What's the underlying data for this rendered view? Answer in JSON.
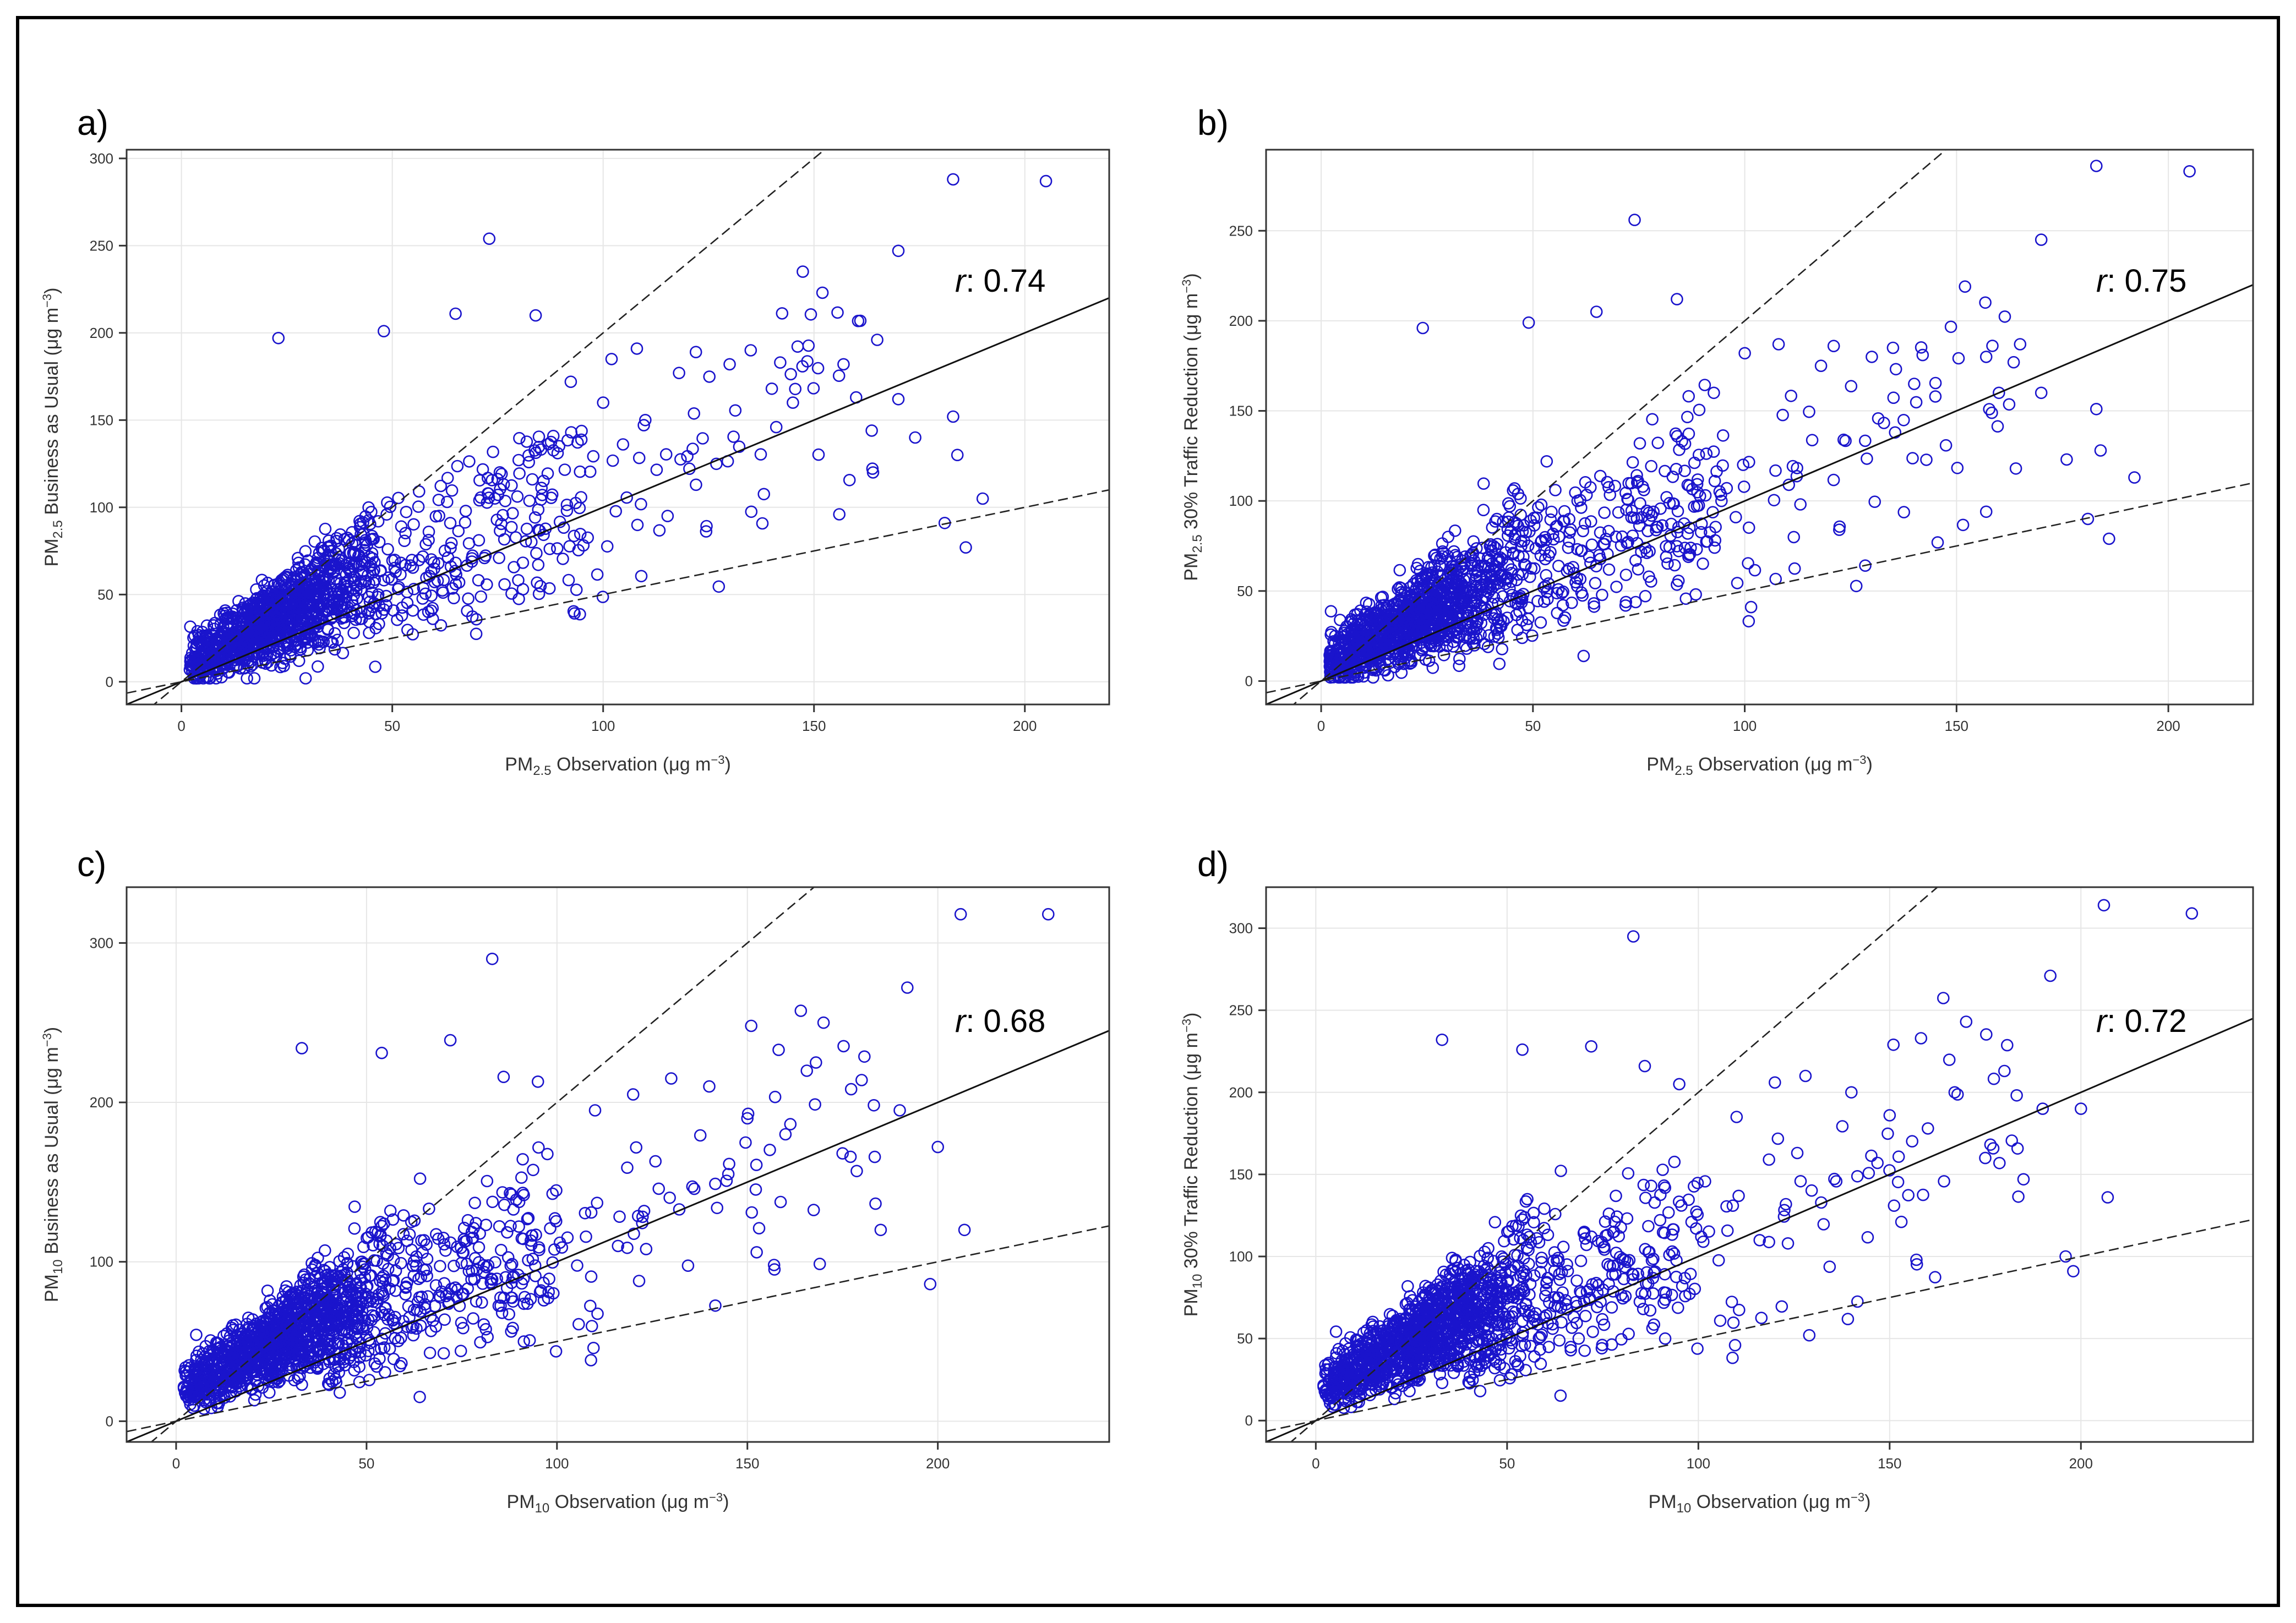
{
  "colors": {
    "points": "#1a14cc",
    "fit": "#111111",
    "frame": "#000000",
    "grid": "#e6e6e6"
  },
  "chart_data": [
    {
      "type": "scatter",
      "panel": "a)",
      "r_prefix": "r",
      "r_value": ": 0.74",
      "xlabel": {
        "main": "PM",
        "sub": "2.5",
        "rest": " Observation (μg m",
        "sup": "−3",
        "close": ")"
      },
      "ylabel": {
        "main": "PM",
        "sub": "2.5",
        "rest": " Business as Usual (μg m",
        "sup": "−3",
        "close": ")"
      },
      "xlim": [
        -13,
        220
      ],
      "ylim": [
        -13,
        305
      ],
      "xticks": [
        0,
        50,
        100,
        150,
        200
      ],
      "yticks": [
        0,
        50,
        100,
        150,
        200,
        250,
        300
      ],
      "fit": {
        "slope": 1.0,
        "intercept": 0
      },
      "factor_of_two": {
        "upper_slope": 2.0,
        "lower_slope": 0.5
      },
      "n_bulk_points": 1400,
      "outliers": [
        [
          183,
          288
        ],
        [
          205,
          287
        ],
        [
          73,
          254
        ],
        [
          170,
          247
        ],
        [
          23,
          197
        ],
        [
          48,
          201
        ],
        [
          65,
          211
        ],
        [
          84,
          210
        ],
        [
          152,
          223
        ],
        [
          165,
          196
        ],
        [
          108,
          191
        ],
        [
          122,
          189
        ],
        [
          130,
          182
        ],
        [
          142,
          183
        ],
        [
          157,
          182
        ],
        [
          118,
          177
        ],
        [
          102,
          185
        ],
        [
          140,
          168
        ],
        [
          145,
          160
        ],
        [
          160,
          163
        ],
        [
          183,
          152
        ],
        [
          184,
          130
        ],
        [
          170,
          162
        ],
        [
          174,
          140
        ],
        [
          190,
          105
        ],
        [
          186,
          77
        ],
        [
          156,
          96
        ],
        [
          164,
          120
        ],
        [
          181,
          91
        ],
        [
          135,
          190
        ],
        [
          100,
          160
        ],
        [
          110,
          150
        ]
      ]
    },
    {
      "type": "scatter",
      "panel": "b)",
      "r_prefix": "r",
      "r_value": ": 0.75",
      "xlabel": {
        "main": "PM",
        "sub": "2.5",
        "rest": " Observation (μg m",
        "sup": "−3",
        "close": ")"
      },
      "ylabel": {
        "main": "PM",
        "sub": "2.5",
        "rest": " 30% Traffic Reduction (μg m",
        "sup": "−3",
        "close": ")"
      },
      "xlim": [
        -13,
        220
      ],
      "ylim": [
        -13,
        295
      ],
      "xticks": [
        0,
        50,
        100,
        150,
        200
      ],
      "yticks": [
        0,
        50,
        100,
        150,
        200,
        250
      ],
      "fit": {
        "slope": 1.0,
        "intercept": 0
      },
      "factor_of_two": {
        "upper_slope": 2.0,
        "lower_slope": 0.5
      },
      "n_bulk_points": 1400,
      "outliers": [
        [
          183,
          286
        ],
        [
          205,
          283
        ],
        [
          74,
          256
        ],
        [
          170,
          245
        ],
        [
          24,
          196
        ],
        [
          49,
          199
        ],
        [
          65,
          205
        ],
        [
          84,
          212
        ],
        [
          152,
          219
        ],
        [
          165,
          187
        ],
        [
          108,
          187
        ],
        [
          121,
          186
        ],
        [
          130,
          180
        ],
        [
          142,
          181
        ],
        [
          157,
          180
        ],
        [
          118,
          175
        ],
        [
          100,
          182
        ],
        [
          140,
          165
        ],
        [
          145,
          158
        ],
        [
          160,
          160
        ],
        [
          183,
          151
        ],
        [
          184,
          128
        ],
        [
          170,
          160
        ],
        [
          176,
          123
        ],
        [
          192,
          113
        ],
        [
          186,
          79
        ],
        [
          157,
          94
        ],
        [
          164,
          118
        ],
        [
          181,
          90
        ],
        [
          135,
          185
        ]
      ]
    },
    {
      "type": "scatter",
      "panel": "c)",
      "r_prefix": "r",
      "r_value": ": 0.68",
      "xlabel": {
        "main": "PM",
        "sub": "10",
        "rest": " Observation (μg m",
        "sup": "−3",
        "close": ")"
      },
      "ylabel": {
        "main": "PM",
        "sub": "10",
        "rest": " Business as Usual (μg m",
        "sup": "−3",
        "close": ")"
      },
      "xlim": [
        -13,
        245
      ],
      "ylim": [
        -13,
        335
      ],
      "xticks": [
        0,
        50,
        100,
        150,
        200
      ],
      "yticks": [
        0,
        100,
        200,
        300
      ],
      "fit": {
        "slope": 1.0,
        "intercept": 0
      },
      "factor_of_two": {
        "upper_slope": 2.0,
        "lower_slope": 0.5
      },
      "n_bulk_points": 1500,
      "outliers": [
        [
          206,
          318
        ],
        [
          229,
          318
        ],
        [
          83,
          290
        ],
        [
          192,
          272
        ],
        [
          33,
          234
        ],
        [
          54,
          231
        ],
        [
          72,
          239
        ],
        [
          170,
          250
        ],
        [
          151,
          248
        ],
        [
          86,
          216
        ],
        [
          95,
          213
        ],
        [
          130,
          215
        ],
        [
          140,
          210
        ],
        [
          120,
          205
        ],
        [
          180,
          214
        ],
        [
          200,
          172
        ],
        [
          207,
          120
        ],
        [
          198,
          86
        ],
        [
          190,
          195
        ],
        [
          160,
          180
        ],
        [
          175,
          168
        ],
        [
          110,
          195
        ],
        [
          150,
          190
        ],
        [
          168,
          225
        ],
        [
          145,
          155
        ],
        [
          185,
          120
        ],
        [
          157,
          98
        ]
      ]
    },
    {
      "type": "scatter",
      "panel": "d)",
      "r_prefix": "r",
      "r_value": ": 0.72",
      "xlabel": {
        "main": "PM",
        "sub": "10",
        "rest": " Observation (μg m",
        "sup": "−3",
        "close": ")"
      },
      "ylabel": {
        "main": "PM",
        "sub": "10",
        "rest": " 30% Traffic Reduction (μg m",
        "sup": "−3",
        "close": ")"
      },
      "xlim": [
        -13,
        245
      ],
      "ylim": [
        -13,
        325
      ],
      "xticks": [
        0,
        50,
        100,
        150,
        200
      ],
      "yticks": [
        0,
        50,
        100,
        150,
        200,
        250,
        300
      ],
      "fit": {
        "slope": 1.0,
        "intercept": 0
      },
      "factor_of_two": {
        "upper_slope": 2.0,
        "lower_slope": 0.5
      },
      "n_bulk_points": 1500,
      "outliers": [
        [
          206,
          314
        ],
        [
          229,
          309
        ],
        [
          83,
          295
        ],
        [
          192,
          271
        ],
        [
          33,
          232
        ],
        [
          54,
          226
        ],
        [
          72,
          228
        ],
        [
          170,
          243
        ],
        [
          151,
          229
        ],
        [
          86,
          216
        ],
        [
          95,
          205
        ],
        [
          128,
          210
        ],
        [
          140,
          200
        ],
        [
          120,
          206
        ],
        [
          180,
          213
        ],
        [
          200,
          190
        ],
        [
          207,
          136
        ],
        [
          198,
          91
        ],
        [
          190,
          190
        ],
        [
          160,
          178
        ],
        [
          175,
          160
        ],
        [
          110,
          185
        ],
        [
          150,
          186
        ],
        [
          167,
          200
        ],
        [
          129,
          52
        ],
        [
          185,
          147
        ],
        [
          157,
          98
        ],
        [
          196,
          100
        ]
      ]
    }
  ]
}
